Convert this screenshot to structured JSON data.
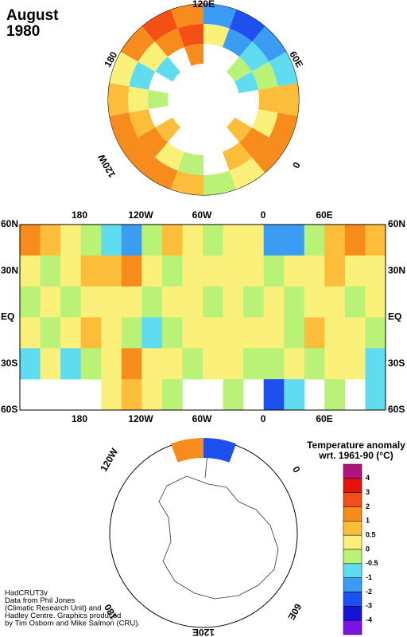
{
  "title": [
    "August",
    "1980"
  ],
  "north_polar": {
    "labels": [
      "120E",
      "60E",
      "0",
      "120W",
      "180"
    ],
    "rings": [
      [
        0.3,
        0.7,
        1,
        1.5,
        1.2,
        0.7,
        -0.3,
        0.3,
        1,
        1.5,
        0.7,
        -0.7,
        -1.5,
        -2.5,
        -1.5,
        1,
        2.5,
        1.5
      ],
      [
        -0.7,
        0.3,
        0.7,
        1,
        0.3,
        -0.3,
        null,
        0.7,
        1,
        0.3,
        0.7,
        -0.3,
        -0.7,
        -1.5,
        0.3,
        2.5,
        1,
        0.3
      ],
      [
        null,
        -0.3,
        null,
        0.7,
        null,
        null,
        null,
        null,
        0.7,
        null,
        null,
        -0.7,
        -0.3,
        null,
        null,
        1.5,
        null,
        -0.7
      ]
    ]
  },
  "map": {
    "lon_labels": [
      "180",
      "120W",
      "60W",
      "0",
      "60E"
    ],
    "lat_labels": [
      "60N",
      "30N",
      "EQ",
      "30S",
      "60S"
    ],
    "grid": [
      [
        1,
        0.7,
        0.3,
        -0.3,
        -0.8,
        -1.5,
        -0.3,
        0.8,
        0.3,
        -0.3,
        0.2,
        0.3,
        -1.5,
        -1.5,
        -0.3,
        0.7,
        1,
        0.5
      ],
      [
        0.2,
        -0.3,
        0.3,
        0.7,
        0.8,
        1.2,
        0.3,
        -0.3,
        0.2,
        0.3,
        0.3,
        0.3,
        -0.3,
        0.2,
        0.3,
        0.7,
        0.3,
        0.2
      ],
      [
        -0.3,
        0.2,
        -0.3,
        0.3,
        0.2,
        0.3,
        -0.3,
        0.3,
        0.2,
        -0.3,
        0.3,
        -0.3,
        0.2,
        -0.3,
        0.3,
        0.2,
        -0.3,
        0.3
      ],
      [
        0.2,
        -0.3,
        0.3,
        0.7,
        0.3,
        -0.3,
        -0.7,
        -0.3,
        0.3,
        0.3,
        0.2,
        0.3,
        0.3,
        -0.3,
        0.7,
        0.3,
        0.2,
        -0.3
      ],
      [
        -0.7,
        0.3,
        -0.7,
        -0.3,
        0.3,
        1.2,
        0.3,
        0.3,
        -0.3,
        0.3,
        0.2,
        -0.3,
        -0.3,
        0.3,
        -0.3,
        0.2,
        0.3,
        -0.7
      ],
      [
        null,
        null,
        null,
        null,
        0.3,
        0.7,
        0.3,
        -0.3,
        null,
        null,
        -0.3,
        null,
        -2.5,
        -0.7,
        null,
        -0.3,
        null,
        -0.7
      ]
    ]
  },
  "south_polar": {
    "labels": [
      "120W",
      "0",
      "60E",
      "180",
      "120E"
    ],
    "rings": [
      [
        null,
        null,
        null,
        null,
        null,
        1.5,
        -2.5,
        null,
        null,
        null,
        null,
        null,
        null,
        null,
        null,
        null,
        null,
        null
      ]
    ]
  },
  "legend": {
    "title": "Temperature anomaly",
    "subtitle": "wrt. 1961-90  (°C)",
    "levels": [
      4,
      3,
      2,
      1,
      0.5,
      0,
      -0.5,
      -1,
      -2,
      -3,
      -4
    ],
    "colors": [
      "#b0127e",
      "#e8120c",
      "#f25014",
      "#f78c1c",
      "#fbbd3a",
      "#fbf07a",
      "#b9f277",
      "#5fdcf0",
      "#3a9cf2",
      "#1e50f0",
      "#1414d8",
      "#7a14e6"
    ]
  },
  "credits": [
    "HadCRUT3v",
    "Data from Phil Jones",
    "(Climatic Research Unit) and",
    "Hadley Centre.  Graphics produced",
    "by Tim Osborn and Mike Salmon (CRU)."
  ]
}
